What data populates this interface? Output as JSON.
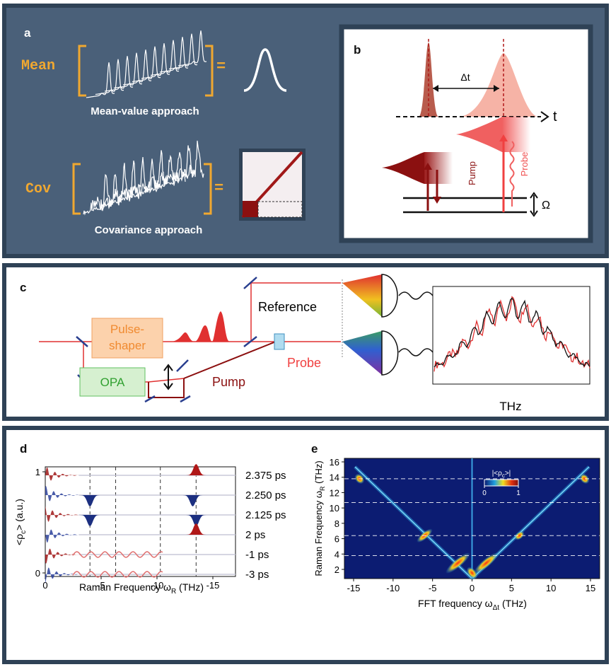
{
  "panel_a": {
    "label": "a",
    "mean": {
      "label": "Mean",
      "equals": "=",
      "caption": "Mean-value approach"
    },
    "cov": {
      "label": "Cov",
      "equals": "=",
      "caption": "Covariance approach"
    }
  },
  "panel_b": {
    "label": "b",
    "delay": "Δt",
    "time_axis": "t",
    "pump": "Pump",
    "probe": "Probe",
    "frequency": "Ω"
  },
  "panel_c": {
    "label": "c",
    "pulse_shaper": [
      "Pulse-",
      "shaper"
    ],
    "opa": "OPA",
    "reference": "Reference",
    "probe": "Probe",
    "pump": "Pump",
    "spectrum_axis": "THz"
  },
  "panel_d": {
    "label": "d",
    "y_label": {
      "text": "<ρ",
      "sub": "c",
      "rest": "> (a.u.)"
    },
    "yticks": [
      0,
      1
    ],
    "xticks": [
      0,
      -5,
      -10,
      -15
    ],
    "x_label": {
      "text": "Raman Frequency ω",
      "sub": "R",
      "rest": " (THz)"
    },
    "delays": [
      "2.375 ps",
      "2.250 ps",
      "2.125 ps",
      "2 ps",
      "-1 ps",
      "-3 ps"
    ]
  },
  "panel_e": {
    "label": "e",
    "y_label": {
      "text": "Raman Frequency ω",
      "sub": "R",
      "rest": " (THz)"
    },
    "yticks": [
      2,
      4,
      6,
      8,
      10,
      12,
      14,
      16
    ],
    "xticks": [
      -15,
      -10,
      -5,
      0,
      5,
      10,
      15
    ],
    "x_label": {
      "text": "FFT frequency ω",
      "sub": "Δt",
      "rest": " (THz)"
    },
    "colorbar": {
      "label": {
        "text": "|<ρ",
        "sub": "c",
        "rest": ">|"
      },
      "ticks": [
        0,
        1
      ]
    }
  }
}
